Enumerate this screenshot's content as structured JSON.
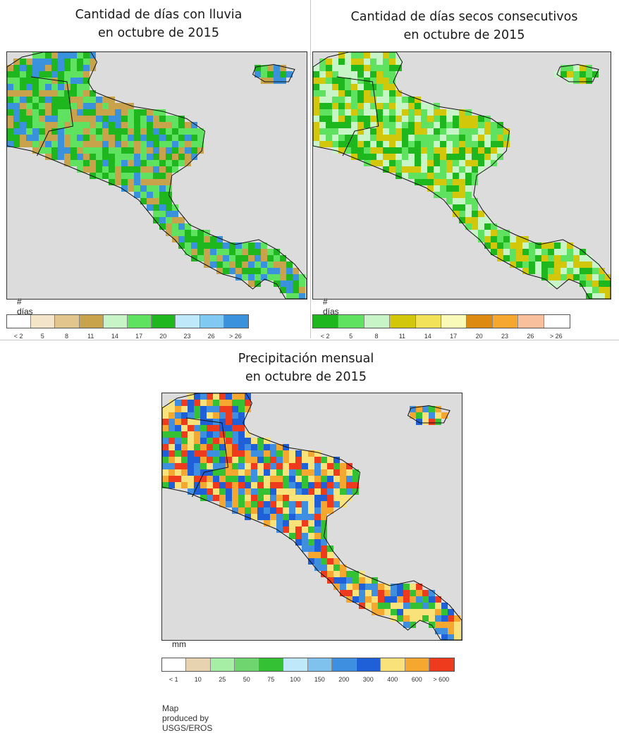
{
  "panels": [
    {
      "id": "rain-days",
      "title_line1": "Cantidad de días con lluvia",
      "title_line2": "en octubre de 2015",
      "unit": "# días",
      "colors": [
        "#ffffff",
        "#f4e4c8",
        "#e2c58c",
        "#c9a34c",
        "#c8f5c8",
        "#5fe25f",
        "#1eb81e",
        "#bfe9fb",
        "#7fc9f2",
        "#3a92dc"
      ],
      "ticks": [
        "< 2",
        "5",
        "8",
        "11",
        "14",
        "17",
        "20",
        "23",
        "26",
        "> 26"
      ],
      "dominant": [
        "#c9a34c",
        "#5fe25f",
        "#1eb81e",
        "#3a92dc"
      ]
    },
    {
      "id": "dry-days",
      "title_line1": "Cantidad de días secos consecutivos",
      "title_line2": "en octubre de 2015",
      "unit": "# días",
      "colors": [
        "#1eb81e",
        "#5fe25f",
        "#c8f5c8",
        "#d2c70a",
        "#f2e25a",
        "#fafab8",
        "#dd8a10",
        "#f6a730",
        "#f8c09c",
        "#ffffff"
      ],
      "ticks": [
        "< 2",
        "5",
        "8",
        "11",
        "14",
        "17",
        "20",
        "23",
        "26",
        "> 26"
      ],
      "dominant": [
        "#d2c70a",
        "#5fe25f",
        "#1eb81e",
        "#c8f5c8"
      ]
    },
    {
      "id": "monthly-precip",
      "title_line1": "Precipitación mensual",
      "title_line2": "en octubre de 2015",
      "unit": "mm",
      "colors": [
        "#ffffff",
        "#e8d3b0",
        "#a6eea6",
        "#6fd66f",
        "#34c234",
        "#bfe9fb",
        "#80c2ee",
        "#3f8fe0",
        "#1f5fd8",
        "#f9e27a",
        "#f6a730",
        "#ee3b1e"
      ],
      "ticks": [
        "< 1",
        "10",
        "25",
        "50",
        "75",
        "100",
        "150",
        "200",
        "300",
        "400",
        "600",
        "> 600"
      ],
      "dominant": [
        "#1f5fd8",
        "#3f8fe0",
        "#f6a730",
        "#f9e27a",
        "#ee3b1e",
        "#34c234"
      ]
    }
  ],
  "credit": "Map produced by USGS/EROS",
  "ocean_color": "#dcdcdc"
}
